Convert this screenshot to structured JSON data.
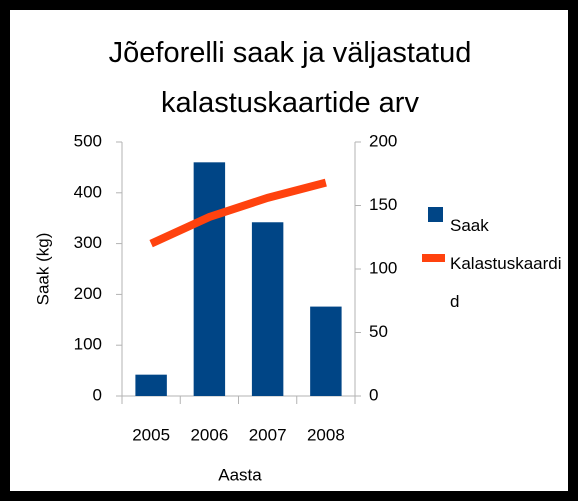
{
  "chart_data": {
    "type": "bar",
    "title": "Jõeforelli saak ja väljastatud kalastuskaartide arv",
    "x_label": "Aasta",
    "y_label": "Saak (kg)",
    "categories": [
      "2005",
      "2006",
      "2007",
      "2008"
    ],
    "series": [
      {
        "name": "Saak",
        "color": "#004586",
        "values": [
          42,
          460,
          342,
          176
        ]
      },
      {
        "name": "Kalastuskaardid",
        "color": "#ff420e",
        "axis": "y2",
        "type": "line",
        "values": [
          120,
          141,
          156,
          168
        ]
      }
    ],
    "ylim": [
      0,
      500
    ],
    "yticks": [
      0,
      100,
      200,
      300,
      400,
      500
    ],
    "y2lim": [
      0,
      200
    ],
    "y2ticks": [
      0,
      50,
      100,
      150,
      200
    ],
    "grid": false,
    "legend": "right"
  }
}
